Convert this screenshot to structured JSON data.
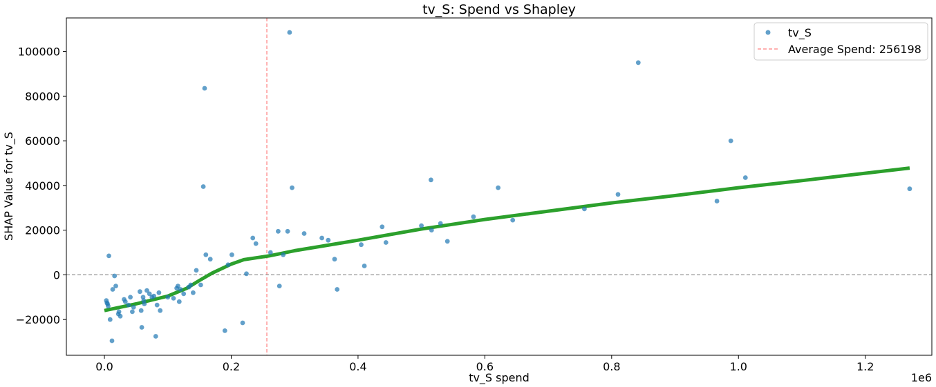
{
  "chart_data": {
    "type": "scatter",
    "title": "tv_S: Spend vs Shapley",
    "xlabel": "tv_S spend",
    "ylabel": "SHAP Value for tv_S",
    "x_offset_label": "1e6",
    "xlim": [
      -0.06,
      1.305
    ],
    "ylim": [
      -36000,
      115000
    ],
    "x_ticks": [
      0.0,
      0.2,
      0.4,
      0.6,
      0.8,
      1.0,
      1.2
    ],
    "x_tick_labels": [
      "0.0",
      "0.2",
      "0.4",
      "0.6",
      "0.8",
      "1.0",
      "1.2"
    ],
    "y_ticks": [
      -20000,
      0,
      20000,
      40000,
      60000,
      80000,
      100000
    ],
    "y_tick_labels": [
      "−20000",
      "0",
      "20000",
      "40000",
      "60000",
      "80000",
      "100000"
    ],
    "grid": false,
    "legend_position": "top-right",
    "colors": {
      "scatter": "#1f77b4",
      "trend": "#2ca02c",
      "average_line": "#ff7f7f",
      "zero_line": "#808080"
    },
    "series": [
      {
        "name": "tv_S",
        "type": "scatter",
        "points": [
          [
            0.003,
            -11500
          ],
          [
            0.004,
            -12500
          ],
          [
            0.005,
            -13000
          ],
          [
            0.006,
            -14000
          ],
          [
            0.007,
            8500
          ],
          [
            0.009,
            -20000
          ],
          [
            0.012,
            -29500
          ],
          [
            0.013,
            -6500
          ],
          [
            0.016,
            -500
          ],
          [
            0.018,
            -5000
          ],
          [
            0.022,
            -17500
          ],
          [
            0.023,
            -16500
          ],
          [
            0.025,
            -18500
          ],
          [
            0.031,
            -11000
          ],
          [
            0.033,
            -12000
          ],
          [
            0.038,
            -13500
          ],
          [
            0.041,
            -10000
          ],
          [
            0.044,
            -16500
          ],
          [
            0.046,
            -14500
          ],
          [
            0.056,
            -7500
          ],
          [
            0.058,
            -16000
          ],
          [
            0.059,
            -23500
          ],
          [
            0.061,
            -10000
          ],
          [
            0.062,
            -11500
          ],
          [
            0.063,
            -13000
          ],
          [
            0.067,
            -7000
          ],
          [
            0.071,
            -8500
          ],
          [
            0.075,
            -10000
          ],
          [
            0.078,
            -9500
          ],
          [
            0.081,
            -27500
          ],
          [
            0.083,
            -13500
          ],
          [
            0.086,
            -8000
          ],
          [
            0.088,
            -16000
          ],
          [
            0.1,
            -10000
          ],
          [
            0.109,
            -10500
          ],
          [
            0.114,
            -6000
          ],
          [
            0.116,
            -5000
          ],
          [
            0.118,
            -12000
          ],
          [
            0.12,
            -6500
          ],
          [
            0.125,
            -8500
          ],
          [
            0.133,
            -5500
          ],
          [
            0.136,
            -4500
          ],
          [
            0.14,
            -8000
          ],
          [
            0.145,
            2000
          ],
          [
            0.152,
            -4500
          ],
          [
            0.156,
            39500
          ],
          [
            0.158,
            83500
          ],
          [
            0.16,
            9000
          ],
          [
            0.167,
            7000
          ],
          [
            0.19,
            -25000
          ],
          [
            0.195,
            4500
          ],
          [
            0.201,
            9000
          ],
          [
            0.218,
            -21500
          ],
          [
            0.224,
            500
          ],
          [
            0.234,
            16500
          ],
          [
            0.239,
            14000
          ],
          [
            0.262,
            10000
          ],
          [
            0.274,
            19500
          ],
          [
            0.276,
            -5000
          ],
          [
            0.282,
            9000
          ],
          [
            0.289,
            19500
          ],
          [
            0.292,
            108500
          ],
          [
            0.296,
            39000
          ],
          [
            0.315,
            18500
          ],
          [
            0.343,
            16500
          ],
          [
            0.353,
            15500
          ],
          [
            0.363,
            7000
          ],
          [
            0.367,
            -6500
          ],
          [
            0.405,
            13500
          ],
          [
            0.41,
            4000
          ],
          [
            0.438,
            21500
          ],
          [
            0.444,
            14500
          ],
          [
            0.5,
            22000
          ],
          [
            0.515,
            42500
          ],
          [
            0.516,
            20000
          ],
          [
            0.53,
            23000
          ],
          [
            0.541,
            15000
          ],
          [
            0.582,
            26000
          ],
          [
            0.621,
            39000
          ],
          [
            0.644,
            24500
          ],
          [
            0.757,
            29500
          ],
          [
            0.81,
            36000
          ],
          [
            0.842,
            95000
          ],
          [
            0.966,
            33000
          ],
          [
            0.988,
            60000
          ],
          [
            1.011,
            43500
          ],
          [
            1.27,
            38500
          ]
        ]
      },
      {
        "name": "trend",
        "type": "line",
        "points": [
          [
            0.0,
            -16000
          ],
          [
            0.05,
            -13000
          ],
          [
            0.1,
            -9500
          ],
          [
            0.13,
            -6000
          ],
          [
            0.15,
            -2500
          ],
          [
            0.17,
            800
          ],
          [
            0.2,
            4800
          ],
          [
            0.22,
            6800
          ],
          [
            0.26,
            8500
          ],
          [
            0.3,
            10800
          ],
          [
            0.4,
            15500
          ],
          [
            0.5,
            20500
          ],
          [
            0.6,
            24800
          ],
          [
            0.7,
            28500
          ],
          [
            0.8,
            32200
          ],
          [
            0.9,
            35500
          ],
          [
            1.0,
            39000
          ],
          [
            1.1,
            42200
          ],
          [
            1.2,
            45500
          ],
          [
            1.27,
            47800
          ]
        ]
      }
    ],
    "reference_lines": [
      {
        "orientation": "vertical",
        "value": 0.256198,
        "style": "dashed",
        "label": "Average Spend: 256198"
      },
      {
        "orientation": "horizontal",
        "value": 0,
        "style": "dashed"
      }
    ],
    "legend": [
      {
        "label": "tv_S",
        "marker": "dot"
      },
      {
        "label": "Average Spend: 256198",
        "marker": "dashed-line"
      }
    ]
  }
}
